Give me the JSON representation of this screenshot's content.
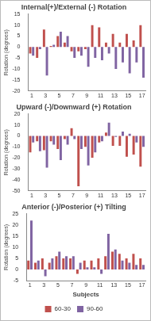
{
  "chart_data": [
    {
      "type": "bar",
      "title": "Internal(+)/External (-) Rotation",
      "ylabel": "Rotation (degrees)",
      "categories": [
        "1",
        null,
        "3",
        null,
        "5",
        null,
        "7",
        null,
        "9",
        null,
        "11",
        null,
        "13",
        null,
        "15",
        null,
        "17"
      ],
      "series": [
        {
          "name": "60-30",
          "color": "#c0504d",
          "values": [
            -3,
            -5,
            8,
            0.5,
            5,
            2,
            -2,
            -2,
            -1,
            10,
            9,
            2,
            6,
            2,
            6,
            3,
            10
          ]
        },
        {
          "name": "90-60",
          "color": "#8064a2",
          "values": [
            -4,
            -1,
            -13,
            1,
            7,
            5,
            -5,
            -4,
            -9,
            -5,
            -6,
            -3,
            -10,
            -7,
            -12,
            -7,
            -14
          ]
        }
      ],
      "ylim": [
        -20,
        15
      ],
      "yticks": [
        -20,
        -15,
        -10,
        -5,
        0,
        5,
        10,
        15
      ],
      "grid": false
    },
    {
      "type": "bar",
      "title": "Upward (-)/Downward (+) Rotation",
      "ylabel": "Rotation (degrees)",
      "categories": [
        "1",
        null,
        "3",
        null,
        "5",
        null,
        "7",
        null,
        "9",
        null,
        "11",
        null,
        "13",
        null,
        "15",
        null,
        "17"
      ],
      "series": [
        {
          "name": "60-30",
          "color": "#c0504d",
          "values": [
            -15,
            -5,
            -13,
            -5,
            -12,
            -3,
            7,
            -46,
            -10,
            -20,
            -6,
            3,
            -9,
            -9,
            -19,
            -17,
            -28
          ]
        },
        {
          "name": "90-60",
          "color": "#8064a2",
          "values": [
            -6,
            -14,
            -29,
            -8,
            -22,
            -8,
            -3,
            -12,
            -27,
            -15,
            -5,
            12,
            -1,
            4,
            2,
            -6,
            -10
          ]
        }
      ],
      "ylim": [
        -50,
        20
      ],
      "yticks": [
        -50,
        -40,
        -30,
        -20,
        -10,
        0,
        10,
        20
      ],
      "grid": false
    },
    {
      "type": "bar",
      "title": "Anterior (-)/Posterior (+) Tilting",
      "ylabel": "Rotation (degrees)",
      "xlabel": "Subjects",
      "categories": [
        "1",
        null,
        "3",
        null,
        "5",
        null,
        "7",
        null,
        "9",
        null,
        "11",
        null,
        "13",
        null,
        "15",
        null,
        "17"
      ],
      "series": [
        {
          "name": "60-30",
          "color": "#c0504d",
          "values": [
            4,
            3,
            5,
            3,
            6,
            5,
            5,
            -2,
            4,
            4,
            5,
            6,
            8,
            7,
            5,
            7,
            5
          ]
        },
        {
          "name": "90-60",
          "color": "#8064a2",
          "values": [
            22,
            4,
            -3,
            5,
            8,
            6,
            6,
            3,
            1,
            1,
            -2,
            16,
            9,
            4,
            3,
            2,
            2
          ]
        }
      ],
      "ylim": [
        -5,
        25
      ],
      "yticks": [
        -5,
        0,
        5,
        10,
        15,
        20,
        25
      ],
      "grid": false,
      "legend": "bottom"
    }
  ]
}
